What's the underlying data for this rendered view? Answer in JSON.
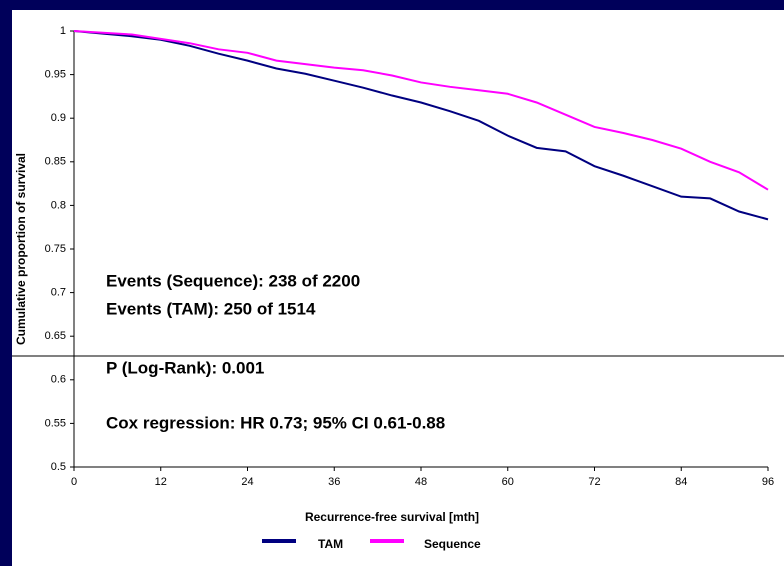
{
  "chart_data": {
    "type": "line",
    "xlabel": "Recurrence-free survival [mth]",
    "ylabel": "Cumulative proportion of survival",
    "annotations": [
      "Events (Sequence): 238 of 2200",
      "Events (TAM): 250 of 1514",
      "P (Log-Rank): 0.001",
      "Cox regression: HR 0.73; 95% CI 0.61-0.88"
    ],
    "x": [
      0,
      4,
      8,
      12,
      16,
      20,
      24,
      28,
      32,
      36,
      40,
      44,
      48,
      52,
      56,
      60,
      64,
      68,
      72,
      76,
      80,
      84,
      88,
      92,
      96
    ],
    "series": [
      {
        "name": "TAM",
        "color": "#000080",
        "values": [
          1,
          0.997,
          0.994,
          0.99,
          0.983,
          0.974,
          0.966,
          0.957,
          0.951,
          0.943,
          0.935,
          0.926,
          0.918,
          0.908,
          0.897,
          0.88,
          0.866,
          0.862,
          0.845,
          0.834,
          0.822,
          0.81,
          0.808,
          0.793,
          0.784
        ]
      },
      {
        "name": "Sequence",
        "color": "#ff00ff",
        "values": [
          1,
          0.998,
          0.996,
          0.991,
          0.986,
          0.979,
          0.975,
          0.966,
          0.962,
          0.958,
          0.955,
          0.949,
          0.941,
          0.936,
          0.932,
          0.928,
          0.918,
          0.904,
          0.89,
          0.883,
          0.875,
          0.865,
          0.85,
          0.838,
          0.818
        ]
      }
    ],
    "xlim": [
      0,
      96
    ],
    "xticks": [
      0,
      12,
      24,
      36,
      48,
      60,
      72,
      84,
      96
    ],
    "ylim": [
      0.5,
      1
    ],
    "yticks": [
      0.5,
      0.55,
      0.6,
      0.65,
      0.7,
      0.75,
      0.8,
      0.85,
      0.9,
      0.95,
      1
    ],
    "legend": "bottom"
  }
}
